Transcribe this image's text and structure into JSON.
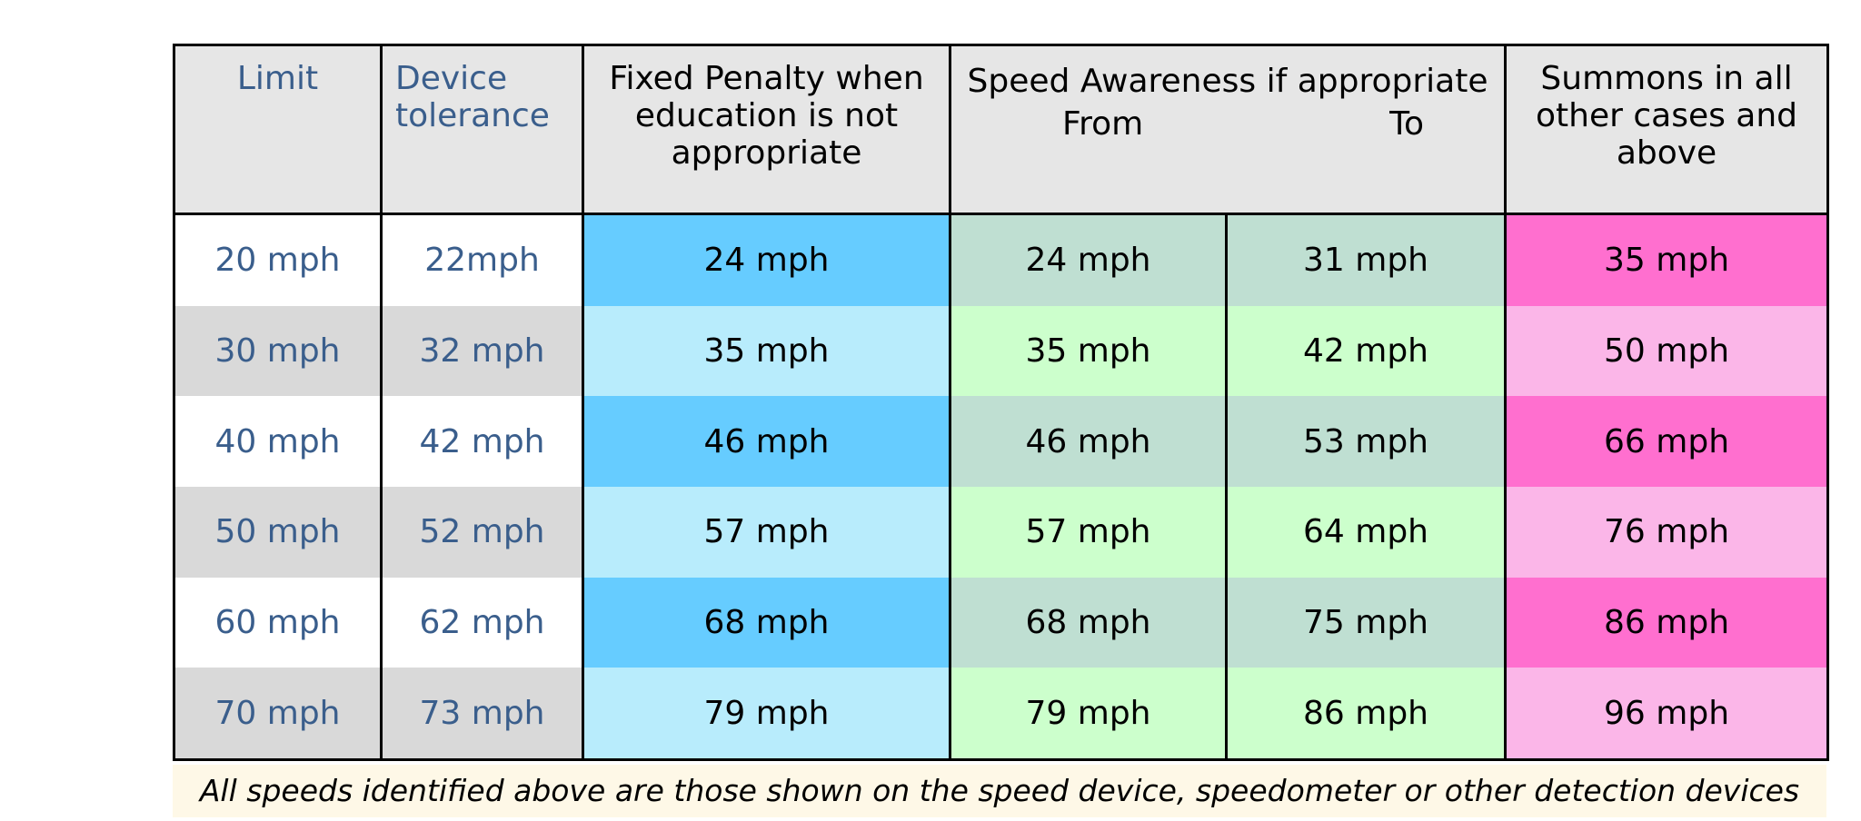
{
  "headers": {
    "limit": "Limit",
    "tolerance_line1": "Device",
    "tolerance_line2": "tolerance",
    "fixed_line1": "Fixed Penalty when",
    "fixed_line2": "education is not",
    "fixed_line3": "appropriate",
    "awareness_title": "Speed Awareness if appropriate",
    "awareness_from": "From",
    "awareness_to": "To",
    "summons_line1": "Summons in all",
    "summons_line2": "other cases and",
    "summons_line3": "above"
  },
  "rows": [
    {
      "limit": "20 mph",
      "tolerance": "22mph",
      "fixed_penalty": "24 mph",
      "awareness_from": "24 mph",
      "awareness_to": "31 mph",
      "summons": "35 mph"
    },
    {
      "limit": "30 mph",
      "tolerance": "32 mph",
      "fixed_penalty": "35 mph",
      "awareness_from": "35 mph",
      "awareness_to": "42 mph",
      "summons": "50 mph"
    },
    {
      "limit": "40 mph",
      "tolerance": "42 mph",
      "fixed_penalty": "46 mph",
      "awareness_from": "46 mph",
      "awareness_to": "53 mph",
      "summons": "66 mph"
    },
    {
      "limit": "50 mph",
      "tolerance": "52 mph",
      "fixed_penalty": "57 mph",
      "awareness_from": "57 mph",
      "awareness_to": "64 mph",
      "summons": "76 mph"
    },
    {
      "limit": "60 mph",
      "tolerance": "62 mph",
      "fixed_penalty": "68 mph",
      "awareness_from": "68 mph",
      "awareness_to": "75 mph",
      "summons": "86 mph"
    },
    {
      "limit": "70 mph",
      "tolerance": "73 mph",
      "fixed_penalty": "79 mph",
      "awareness_from": "79 mph",
      "awareness_to": "86 mph",
      "summons": "96 mph"
    }
  ],
  "footnote": "All speeds identified above are those shown on the speed device, speedometer or other detection devices",
  "colors": {
    "header_bg": "#e6e6e6",
    "limit_text": "#3a5e8c",
    "fixed_dark": "#66ccff",
    "fixed_light": "#b8ecfc",
    "awareness_dark": "#bfdfd2",
    "awareness_light": "#ccffcc",
    "summons_dark": "#ff6fcf",
    "summons_light": "#fbb6e8",
    "footnote_bg": "#fef8e7"
  }
}
